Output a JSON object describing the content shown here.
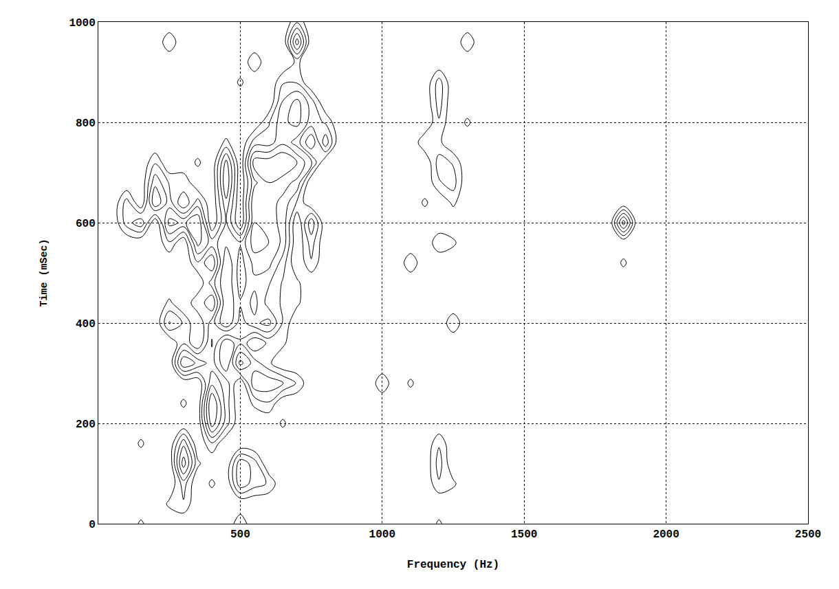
{
  "chart_data": {
    "type": "contour",
    "x_label": "Frequency (Hz)",
    "y_label": "Time (mSec)",
    "color": "#000000",
    "grid": true,
    "xlim": [
      0,
      2500
    ],
    "ylim": [
      0,
      1000
    ],
    "xticks": [
      500,
      1000,
      1500,
      2000,
      2500
    ],
    "yticks": [
      0,
      200,
      400,
      600,
      800,
      1000
    ],
    "levels": [
      0.8,
      1.6,
      2.4,
      3.2,
      4.0
    ],
    "x": [
      0,
      50,
      100,
      150,
      200,
      250,
      300,
      350,
      400,
      450,
      500,
      550,
      600,
      650,
      700,
      750,
      800,
      850,
      900,
      950,
      1000,
      1050,
      1100,
      1150,
      1200,
      1250,
      1300,
      1350,
      1400,
      1450,
      1500,
      1550,
      1600,
      1650,
      1700,
      1750,
      1800,
      1850,
      1900,
      1950,
      2000,
      2050,
      2100,
      2150,
      2200,
      2250,
      2300,
      2350,
      2400,
      2450,
      2500
    ],
    "y": [
      0,
      40,
      80,
      120,
      160,
      200,
      240,
      280,
      320,
      360,
      400,
      440,
      480,
      520,
      560,
      600,
      640,
      680,
      720,
      760,
      800,
      840,
      880,
      920,
      960,
      1000
    ],
    "z": [
      [
        0,
        0,
        0,
        1,
        0,
        0,
        0,
        0,
        0,
        0,
        1.5,
        0,
        0,
        0,
        0,
        0,
        0,
        0,
        0,
        0,
        0,
        0,
        0,
        0,
        1,
        0,
        0,
        0,
        0,
        0,
        0,
        0,
        0,
        0,
        0,
        0,
        0,
        0,
        0,
        0,
        0,
        0,
        0,
        0,
        0,
        0,
        0,
        0,
        0,
        0,
        0
      ],
      [
        0,
        0,
        0,
        0,
        0,
        1,
        1.5,
        0,
        0,
        0,
        0,
        0,
        0,
        0,
        0,
        0,
        0,
        0,
        0,
        0,
        0,
        0,
        0,
        0,
        0,
        0,
        0,
        0,
        0,
        0,
        0,
        0,
        0,
        0,
        0,
        0,
        0,
        0,
        0,
        0,
        0,
        0,
        0,
        0,
        0,
        0,
        0,
        0,
        0,
        0,
        0
      ],
      [
        0,
        0,
        0,
        0,
        0,
        0,
        2,
        0,
        1,
        0,
        3,
        2,
        1.5,
        0,
        0,
        0,
        0,
        0,
        0,
        0,
        0,
        0,
        0,
        0,
        1.5,
        1,
        0,
        0,
        0,
        0,
        0,
        0,
        0,
        0,
        0,
        0,
        0,
        0,
        0,
        0,
        0,
        0,
        0,
        0,
        0,
        0,
        0,
        0,
        0,
        0,
        0
      ],
      [
        0,
        0,
        0,
        0,
        0,
        0,
        4.5,
        1,
        0,
        0,
        3,
        2,
        0,
        0,
        0,
        0,
        0,
        0,
        0,
        0,
        0,
        0,
        0,
        0,
        2,
        0,
        0,
        0,
        0,
        0,
        0,
        0,
        0,
        0,
        0,
        0,
        0,
        0,
        0,
        0,
        0,
        0,
        0,
        0,
        0,
        0,
        0,
        0,
        0,
        0,
        0
      ],
      [
        0,
        0,
        0,
        1,
        0,
        0,
        3,
        0,
        1.5,
        0,
        0,
        0,
        0,
        0,
        0,
        0,
        0,
        0,
        0,
        0,
        0,
        0,
        0,
        0,
        1.5,
        0,
        0,
        0,
        0,
        0,
        0,
        0,
        0,
        0,
        0,
        0,
        0,
        0,
        0,
        0,
        0,
        0,
        0,
        0,
        0,
        0,
        0,
        0,
        0,
        0,
        0
      ],
      [
        0,
        0,
        0,
        0,
        0,
        0,
        0,
        0,
        4.5,
        2,
        0,
        0,
        0,
        1,
        0,
        0,
        0,
        0,
        0,
        0,
        0,
        0,
        0,
        0,
        0,
        0,
        0,
        0,
        0,
        0,
        0,
        0,
        0,
        0,
        0,
        0,
        0,
        0,
        0,
        0,
        0,
        0,
        0,
        0,
        0,
        0,
        0,
        0,
        0,
        0,
        0
      ],
      [
        0,
        0,
        0,
        0,
        0,
        0,
        1,
        0,
        5,
        2,
        0,
        1,
        1.5,
        0,
        0,
        0,
        0,
        0,
        0,
        0,
        0,
        0,
        0,
        0,
        0,
        0,
        0,
        0,
        0,
        0,
        0,
        0,
        0,
        0,
        0,
        0,
        0,
        0,
        0,
        0,
        0,
        0,
        0,
        0,
        0,
        0,
        0,
        0,
        0,
        0,
        0
      ],
      [
        0,
        0,
        0,
        0,
        0,
        0,
        0,
        0,
        3,
        2,
        0,
        3,
        3,
        2.5,
        1.5,
        0,
        0,
        0,
        0,
        0,
        1.5,
        0,
        1,
        0,
        0,
        0,
        0,
        0,
        0,
        0,
        0,
        0,
        0,
        0,
        0,
        0,
        0,
        0,
        0,
        0,
        0,
        0,
        0,
        0,
        0,
        0,
        0,
        0,
        0,
        0,
        0
      ],
      [
        0,
        0,
        0,
        0,
        0,
        0,
        4,
        3,
        2,
        0,
        3.5,
        2,
        1,
        0,
        0,
        0,
        0,
        0,
        0,
        0,
        0,
        0,
        0,
        0,
        0,
        0,
        0,
        0,
        0,
        0,
        0,
        0,
        0,
        0,
        0,
        0,
        0,
        0,
        0,
        0,
        0,
        0,
        0,
        0,
        0,
        0,
        0,
        0,
        0,
        0,
        0
      ],
      [
        0,
        0,
        0,
        0,
        0,
        0,
        1.5,
        0,
        2.5,
        0,
        1.5,
        0,
        1,
        1,
        0,
        0,
        0,
        0,
        0,
        0,
        0,
        0,
        0,
        0,
        0,
        0,
        0,
        0,
        0,
        0,
        0,
        0,
        0,
        0,
        0,
        0,
        0,
        0,
        0,
        0,
        0,
        0,
        0,
        0,
        0,
        0,
        0,
        0,
        0,
        0,
        0
      ],
      [
        0,
        0,
        0,
        0,
        0,
        2.5,
        1.5,
        0,
        2,
        4,
        2,
        3,
        3.5,
        1.5,
        0,
        0,
        0,
        0,
        0,
        0,
        0,
        0,
        0,
        0,
        0,
        1.5,
        0,
        0,
        0,
        0,
        0,
        0,
        0,
        0,
        0,
        0,
        0,
        0,
        0,
        0,
        0,
        0,
        0,
        0,
        0,
        0,
        0,
        0,
        0,
        0,
        0
      ],
      [
        0,
        0,
        0,
        0,
        0,
        1,
        0,
        1.5,
        0,
        4,
        2.5,
        3.5,
        2,
        1.5,
        1,
        0,
        0,
        0,
        0,
        0,
        0,
        0,
        0,
        0,
        0,
        0,
        0,
        0,
        0,
        0,
        0,
        0,
        0,
        0,
        0,
        0,
        0,
        0,
        0,
        0,
        0,
        0,
        0,
        0,
        0,
        0,
        0,
        0,
        0,
        0,
        0
      ],
      [
        0,
        0,
        0,
        0,
        0,
        0,
        0,
        0,
        2,
        4,
        2,
        3,
        2.5,
        1.5,
        1,
        0,
        0,
        0,
        0,
        0,
        0,
        0,
        0,
        0,
        0,
        0,
        0,
        0,
        0,
        0,
        0,
        0,
        0,
        0,
        0,
        0,
        0,
        0,
        0,
        0,
        0,
        0,
        0,
        0,
        0,
        0,
        0,
        0,
        0,
        0,
        0
      ],
      [
        0,
        0,
        0,
        0,
        0,
        0,
        0,
        1.5,
        0,
        4,
        2,
        3.5,
        3.5,
        2,
        0,
        1.5,
        0,
        0,
        0,
        0,
        0,
        0,
        1.5,
        0,
        0,
        0,
        0,
        0,
        0,
        0,
        0,
        0,
        0,
        0,
        0,
        0,
        0,
        1,
        0,
        0,
        0,
        0,
        0,
        0,
        0,
        0,
        0,
        0,
        0,
        0,
        0
      ],
      [
        0,
        0,
        0,
        0,
        0,
        1.5,
        0,
        3.5,
        2,
        3,
        2.5,
        4.5,
        4,
        3,
        0,
        2,
        0,
        0,
        0,
        0,
        0,
        0,
        0,
        0,
        1.5,
        1,
        0,
        0,
        0,
        0,
        0,
        0,
        0,
        0,
        0,
        0,
        0,
        0,
        0,
        0,
        0,
        0,
        0,
        0,
        0,
        0,
        0,
        0,
        0,
        0,
        0
      ],
      [
        0,
        0,
        2,
        3,
        0,
        3.5,
        3,
        4,
        0,
        2.5,
        0,
        4,
        3.5,
        3,
        0,
        3,
        0,
        0,
        0,
        0,
        0,
        0,
        0,
        0,
        0,
        0,
        0,
        0,
        0,
        0,
        0,
        0,
        0,
        0,
        0,
        0,
        0,
        4.5,
        0,
        0,
        0,
        0,
        0,
        0,
        0,
        0,
        0,
        0,
        0,
        0,
        0
      ],
      [
        0,
        0,
        2,
        0,
        4,
        2,
        0,
        2,
        0,
        3,
        0,
        4,
        3.5,
        3,
        1.5,
        0,
        0,
        0,
        0,
        0,
        0,
        0,
        0,
        1,
        0,
        1,
        0,
        0,
        0,
        0,
        0,
        0,
        0,
        0,
        0,
        0,
        0,
        0,
        0,
        0,
        0,
        0,
        0,
        0,
        0,
        0,
        0,
        0,
        0,
        0,
        0
      ],
      [
        0,
        0,
        0,
        0,
        3,
        1.5,
        1.5,
        0,
        0,
        4,
        0,
        3,
        4,
        3.5,
        3,
        0,
        0,
        0,
        0,
        0,
        0,
        0,
        0,
        0,
        1.5,
        2,
        0,
        0,
        0,
        0,
        0,
        0,
        0,
        0,
        0,
        0,
        0,
        0,
        0,
        0,
        0,
        0,
        0,
        0,
        0,
        0,
        0,
        0,
        0,
        0,
        0
      ],
      [
        0,
        0,
        0,
        0,
        1.5,
        0,
        0,
        1,
        0,
        3.5,
        0,
        4.5,
        4.5,
        5,
        4,
        2.5,
        0,
        0,
        0,
        0,
        0,
        0,
        0,
        0,
        2,
        1.5,
        0,
        0,
        0,
        0,
        0,
        0,
        0,
        0,
        0,
        0,
        0,
        0,
        0,
        0,
        0,
        0,
        0,
        0,
        0,
        0,
        0,
        0,
        0,
        0,
        0
      ],
      [
        0,
        0,
        0,
        0,
        0,
        0,
        0,
        0,
        0,
        1,
        0,
        2,
        2,
        3,
        2,
        0,
        3,
        0,
        0,
        0,
        0,
        0,
        0,
        1.5,
        1,
        0,
        0,
        0,
        0,
        0,
        0,
        0,
        0,
        0,
        0,
        0,
        0,
        0,
        0,
        0,
        0,
        0,
        0,
        0,
        0,
        0,
        0,
        0,
        0,
        0,
        0
      ],
      [
        0,
        0,
        0,
        0,
        0,
        0,
        0,
        0,
        0,
        0,
        0,
        0,
        1.5,
        3,
        3.5,
        2,
        1.5,
        0,
        0,
        0,
        0,
        0,
        0,
        0,
        1.5,
        0,
        1,
        0,
        0,
        0,
        0,
        0,
        0,
        0,
        0,
        0,
        0,
        0,
        0,
        0,
        0,
        0,
        0,
        0,
        0,
        0,
        0,
        0,
        0,
        0,
        0
      ],
      [
        0,
        0,
        0,
        0,
        0,
        0,
        0,
        0,
        0,
        0,
        0,
        0,
        0,
        2.5,
        3.5,
        2,
        0,
        0,
        0,
        0,
        0,
        0,
        0,
        0,
        2,
        0,
        0,
        0,
        0,
        0,
        0,
        0,
        0,
        0,
        0,
        0,
        0,
        0,
        0,
        0,
        0,
        0,
        0,
        0,
        0,
        0,
        0,
        0,
        0,
        0,
        0
      ],
      [
        0,
        0,
        0,
        0,
        0,
        0,
        0,
        0,
        0,
        0,
        1,
        0,
        0,
        1.5,
        1.5,
        0,
        0,
        0,
        0,
        0,
        0,
        0,
        0,
        0,
        2,
        0,
        0,
        0,
        0,
        0,
        0,
        0,
        0,
        0,
        0,
        0,
        0,
        0,
        0,
        0,
        0,
        0,
        0,
        0,
        0,
        0,
        0,
        0,
        0,
        0,
        0
      ],
      [
        0,
        0,
        0,
        0,
        0,
        0,
        0,
        0,
        0,
        0,
        0,
        1.5,
        0,
        0,
        1,
        0,
        0,
        0,
        0,
        0,
        0,
        0,
        0,
        0,
        0,
        0,
        0,
        0,
        0,
        0,
        0,
        0,
        0,
        0,
        0,
        0,
        0,
        0,
        0,
        0,
        0,
        0,
        0,
        0,
        0,
        0,
        0,
        0,
        0,
        0,
        0
      ],
      [
        0,
        0,
        0,
        0,
        0,
        1.5,
        0,
        0,
        0,
        0,
        0,
        0,
        0,
        0,
        4.5,
        0,
        0,
        0,
        0,
        0,
        0,
        0,
        0,
        0,
        0,
        0,
        1.5,
        0,
        0,
        0,
        0,
        0,
        0,
        0,
        0,
        0,
        0,
        0,
        0,
        0,
        0,
        0,
        0,
        0,
        0,
        0,
        0,
        0,
        0,
        0,
        0
      ],
      [
        0,
        0,
        0,
        0,
        0,
        0,
        0,
        0,
        0,
        0,
        0,
        0,
        0,
        0,
        1.5,
        0,
        0,
        0,
        0,
        0,
        0,
        0,
        0,
        0,
        0,
        0,
        0,
        0,
        0,
        0,
        0,
        0,
        0,
        0,
        0,
        0,
        0,
        0,
        0,
        0,
        0,
        0,
        0,
        0,
        0,
        0,
        0,
        0,
        0,
        0,
        0
      ]
    ]
  }
}
